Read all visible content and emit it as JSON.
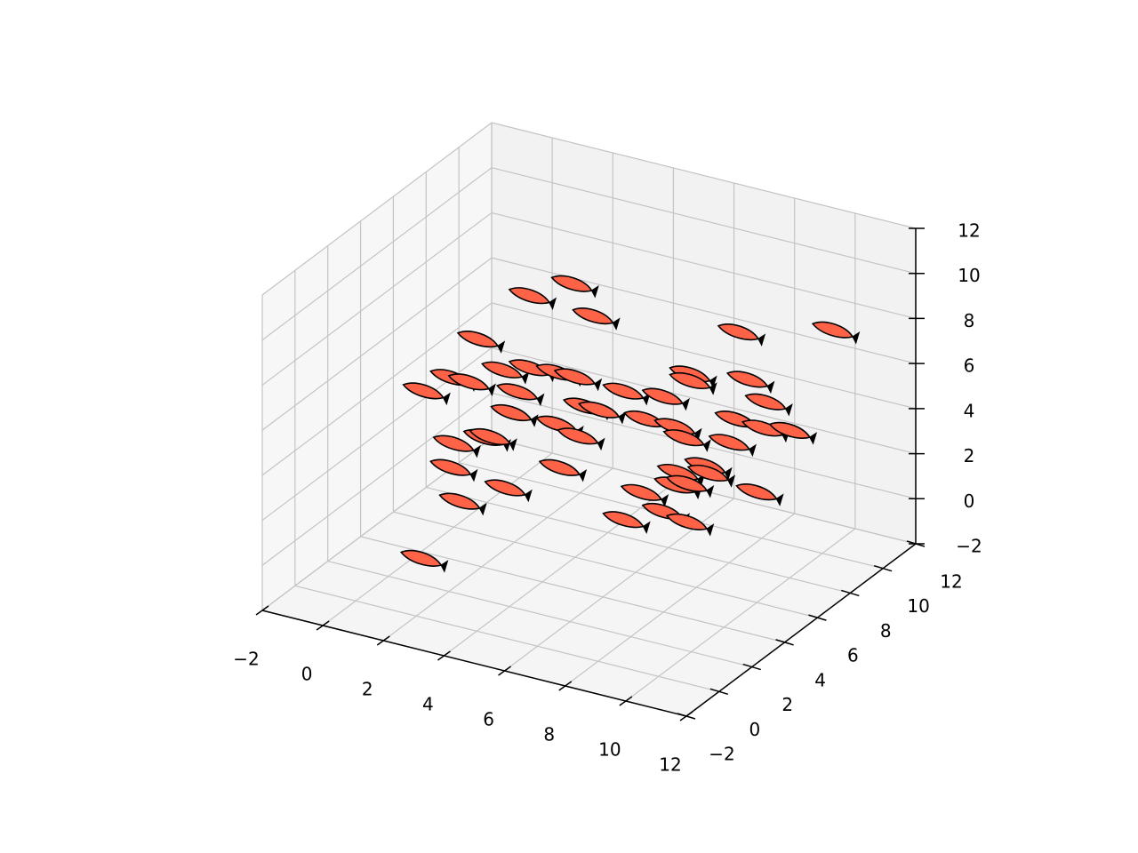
{
  "chart_data": {
    "type": "scatter3d",
    "marker": "fish",
    "color": "#ff6347",
    "grid": true,
    "x": [
      4.5,
      3.1,
      5.2,
      1.4,
      10.0,
      11.6,
      0.5,
      2.2,
      3.1,
      4.0,
      4.6,
      8.4,
      8.4,
      10.3,
      1.1,
      -0.4,
      2.7,
      6.2,
      7.5,
      10.9,
      2.5,
      4.0,
      4.9,
      5.4,
      6.9,
      7.9,
      9.9,
      10.8,
      11.7,
      0.6,
      1.6,
      1.8,
      4.7,
      8.2,
      9.7,
      0.5,
      4.1,
      8.9,
      8.0,
      9.0,
      2.3,
      6.8,
      7.9,
      8.3,
      10.6,
      0.8,
      7.5,
      6.2,
      8.3,
      1.8
    ],
    "y": [
      5,
      5,
      5,
      5,
      5,
      7.8,
      5,
      5,
      5,
      5,
      5,
      5,
      5,
      5,
      5,
      5,
      5,
      5,
      5,
      5,
      5,
      5,
      5,
      5,
      5,
      5,
      5,
      5,
      5,
      5,
      5,
      5,
      5,
      5,
      5,
      5,
      5,
      5,
      5,
      5,
      5,
      5,
      5,
      5,
      5,
      5,
      5,
      5,
      5,
      0.8
    ],
    "z": [
      10.8,
      9.8,
      9.6,
      7.3,
      10.5,
      9.6,
      5.3,
      6.2,
      6.6,
      6.7,
      6.7,
      8.1,
      7.8,
      8.5,
      5.3,
      4.4,
      5.4,
      6.6,
      6.8,
      7.7,
      4.4,
      4.4,
      5.5,
      5.5,
      5.6,
      5.6,
      6.6,
      6.5,
      6.7,
      2.4,
      3.0,
      3.1,
      4.1,
      5.2,
      5.5,
      1.3,
      2.5,
      4.2,
      3.6,
      3.9,
      1.0,
      2.3,
      3.0,
      3.2,
      3.6,
      -0.1,
      1.7,
      0.9,
      1.5,
      0.0
    ],
    "xlim": [
      -2,
      12
    ],
    "ylim": [
      -2,
      12
    ],
    "zlim": [
      -2,
      12
    ],
    "xticks": [
      {
        "value": -2,
        "label": "−2"
      },
      0,
      2,
      4,
      6,
      8,
      10,
      12
    ],
    "yticks": [
      {
        "value": -2,
        "label": "−2"
      },
      0,
      2,
      4,
      6,
      8,
      10,
      12
    ],
    "zticks": [
      {
        "value": -2,
        "label": "−2"
      },
      0,
      2,
      4,
      6,
      8,
      10,
      12
    ]
  }
}
